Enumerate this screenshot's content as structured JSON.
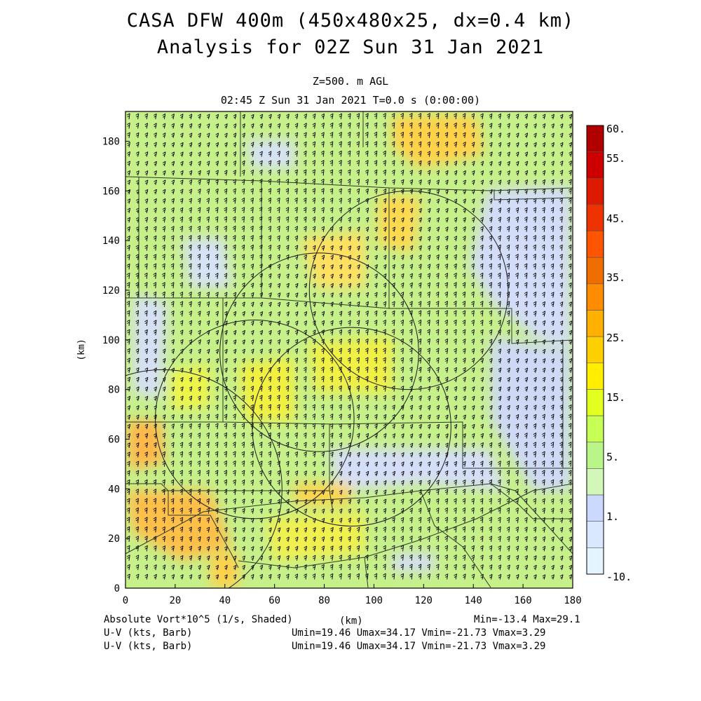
{
  "header": {
    "title_line1": "CASA DFW 400m (450x480x25, dx=0.4 km)",
    "title_line2": "Analysis for 02Z Sun 31 Jan 2021",
    "level": "Z=500. m AGL",
    "time": "02:45 Z Sun 31 Jan 2021   T=0.0 s (0:00:00)"
  },
  "axes": {
    "x_label": "(km)",
    "y_label": "(km)",
    "x_ticks": [
      "0",
      "20",
      "40",
      "60",
      "80",
      "100",
      "120",
      "140",
      "160",
      "180"
    ],
    "y_ticks": [
      "0",
      "20",
      "40",
      "60",
      "80",
      "100",
      "120",
      "140",
      "160",
      "180"
    ],
    "x_range": [
      0,
      180
    ],
    "y_range": [
      0,
      192
    ]
  },
  "colorbar": {
    "labels": [
      "60.",
      "55.",
      "45.",
      "35.",
      "25.",
      "15.",
      "5.",
      "1.",
      "-10."
    ],
    "colors": [
      "#b00000",
      "#cc0000",
      "#dd1a00",
      "#ee3300",
      "#ff5500",
      "#f06e00",
      "#ff8c00",
      "#ffb000",
      "#ffd000",
      "#ffee00",
      "#e2ff20",
      "#c6ff55",
      "#baf58a",
      "#d2f7b8",
      "#ccd9ff",
      "#dae8ff",
      "#e6f4ff"
    ]
  },
  "footer": {
    "field_label": "Absolute Vort*10^5 (1/s, Shaded)",
    "km_label": "(km)",
    "minmax": "Min=-13.4 Max=29.1",
    "uv_label_1": "U-V (kts, Barb)",
    "uv_label_2": "U-V (kts, Barb)",
    "uv_stats_1": "Umin=19.46 Umax=34.17 Vmin=-21.73 Vmax=3.29",
    "uv_stats_2": "Umin=19.46 Umax=34.17 Vmin=-21.73 Vmax=3.29"
  },
  "map_overlays": {
    "radar_range_rings": [
      {
        "center": [
          15,
          40
        ],
        "radius": 48
      },
      {
        "center": [
          52,
          68
        ],
        "radius": 40
      },
      {
        "center": [
          78,
          95
        ],
        "radius": 40
      },
      {
        "center": [
          91,
          65
        ],
        "radius": 40
      },
      {
        "center": [
          114,
          120
        ],
        "radius": 40
      }
    ]
  },
  "colors": {
    "field_background": "#c6f08a",
    "barb": "#000000",
    "boundary": "#2a3a2a"
  }
}
